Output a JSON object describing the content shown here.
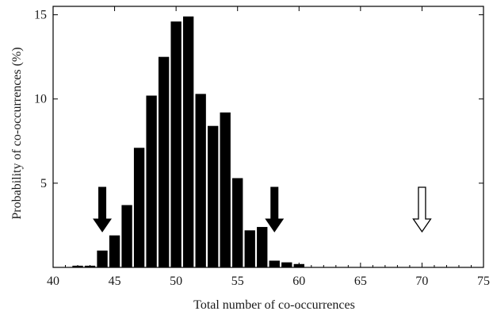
{
  "chart_data": {
    "type": "bar",
    "title": "",
    "xlabel": "Total number of co-occurrences",
    "ylabel": "Probability of co-occurrences (%)",
    "xlim": [
      40,
      75
    ],
    "ylim": [
      0,
      15.5
    ],
    "x_ticks": [
      40,
      45,
      50,
      55,
      60,
      65,
      70,
      75
    ],
    "y_ticks": [
      5,
      10,
      15
    ],
    "grid": false,
    "legend": "none",
    "bar_color": "#000000",
    "series": [
      {
        "x": [
          42,
          43,
          44,
          45,
          46,
          47,
          48,
          49,
          50,
          51,
          52,
          53,
          54,
          55,
          56,
          57,
          58,
          59,
          60
        ],
        "values": [
          0.1,
          0.1,
          1.0,
          1.9,
          3.7,
          7.1,
          10.2,
          12.5,
          14.6,
          14.9,
          10.3,
          8.4,
          9.2,
          5.3,
          2.2,
          2.4,
          0.4,
          0.3,
          0.2
        ]
      }
    ],
    "annotations": [
      {
        "type": "arrow",
        "style": "filled",
        "x": 44,
        "color": "#000000"
      },
      {
        "type": "arrow",
        "style": "filled",
        "x": 58,
        "color": "#000000"
      },
      {
        "type": "arrow",
        "style": "open",
        "x": 70,
        "color": "#ffffff"
      }
    ]
  }
}
